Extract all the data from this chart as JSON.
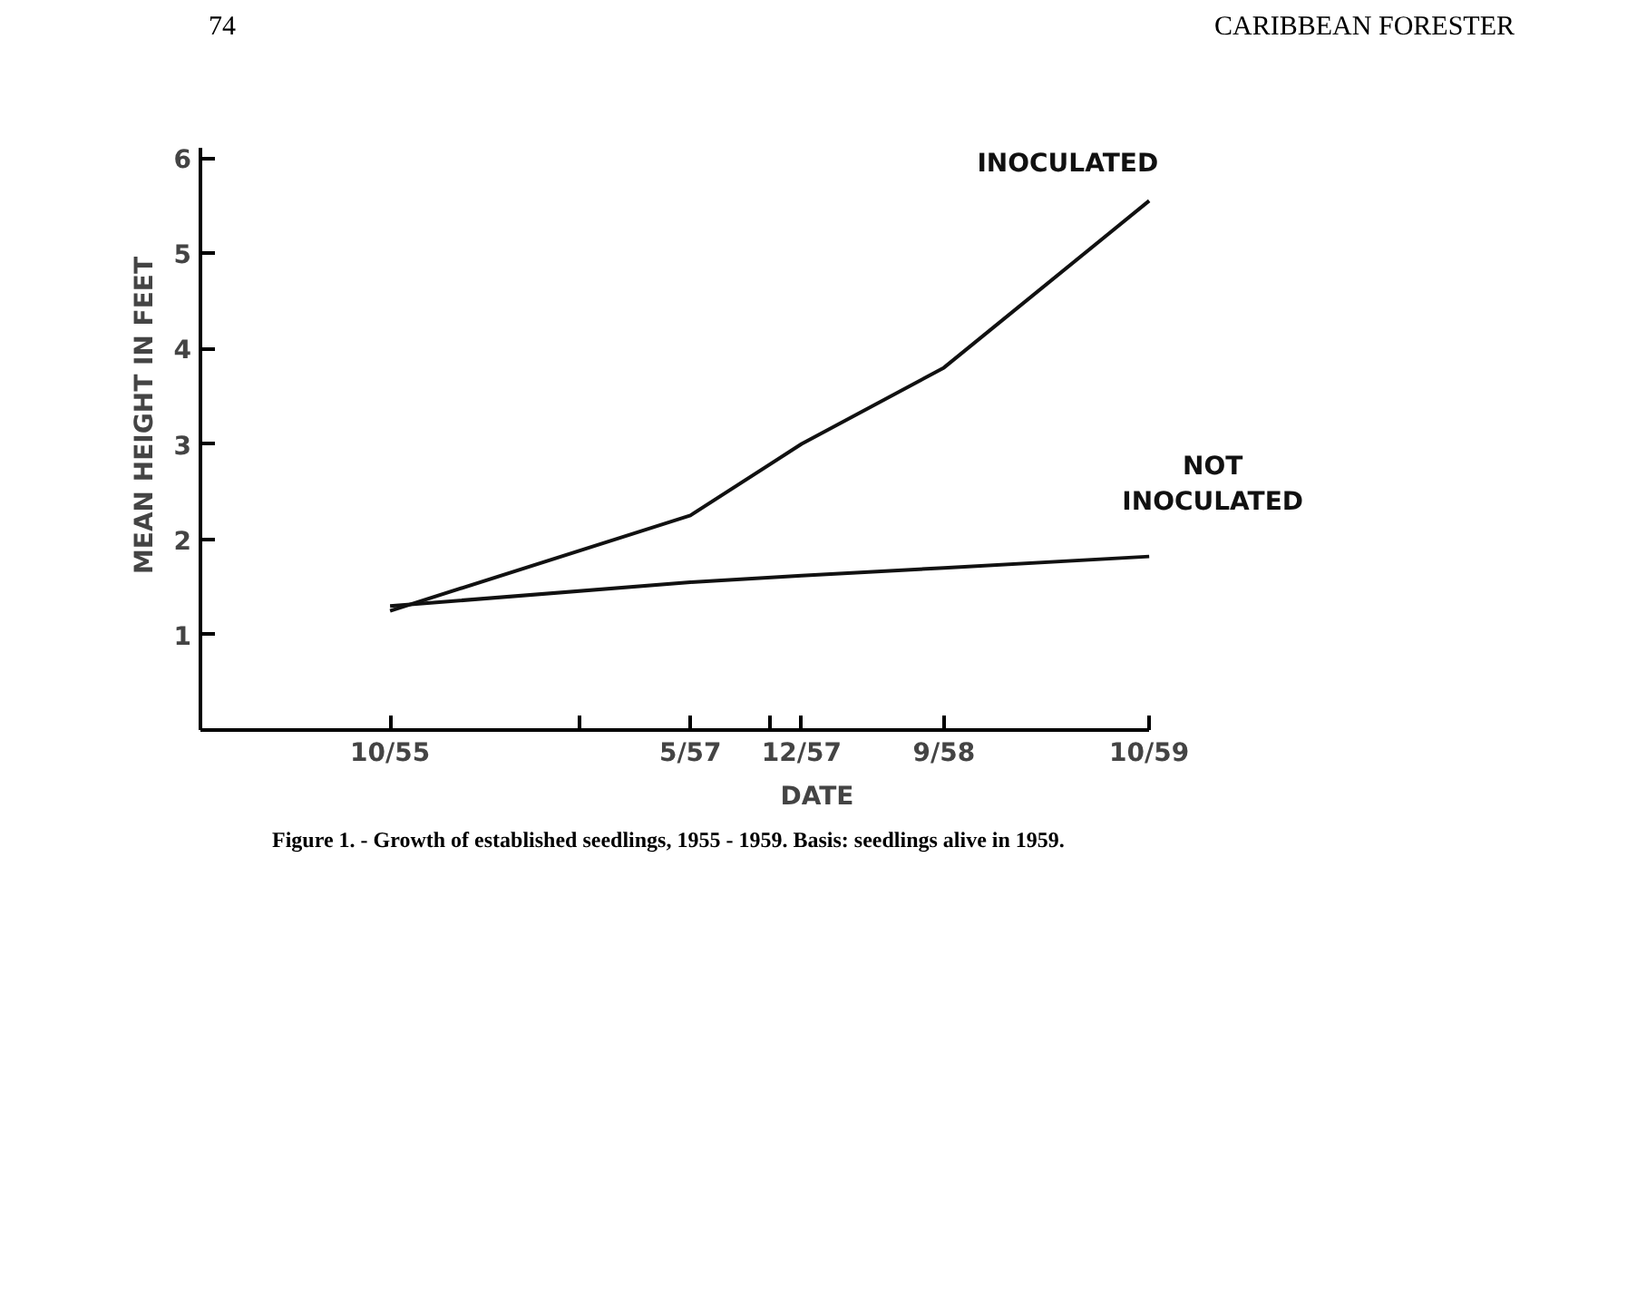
{
  "chart_data": {
    "type": "line",
    "xlabel": "DATE",
    "ylabel": "MEAN HEIGHT IN FEET",
    "x": [
      "1955-10",
      "1957-05",
      "1957-12",
      "1958-09",
      "1959-10"
    ],
    "series": [
      {
        "name": "INOCULATED",
        "color": "#111111",
        "values": [
          1.25,
          2.25,
          3.0,
          3.8,
          5.55
        ]
      },
      {
        "name": "NOT INOCULATED",
        "color": "#111111",
        "values": [
          1.3,
          1.55,
          1.62,
          1.7,
          1.82
        ]
      }
    ],
    "xlim": [
      "1954-10",
      "1959-10"
    ],
    "xticks": [
      {
        "value": "1955-10",
        "label": "10/55"
      },
      {
        "value": "1956-10",
        "label": null
      },
      {
        "value": "1957-05",
        "label": "5/57"
      },
      {
        "value": "1957-10",
        "label": null
      },
      {
        "value": "1957-12",
        "label": "12/57"
      },
      {
        "value": "1958-09",
        "label": "9/58"
      },
      {
        "value": "1959-10",
        "label": "10/59"
      }
    ],
    "ylim": [
      0,
      6.1
    ],
    "yticks": [
      1,
      2,
      3,
      4,
      5,
      6
    ],
    "grid": false,
    "legend": false,
    "marker": "none",
    "line_style": "solid",
    "annotations": [
      "74",
      "CARIBBEAN FORESTER",
      "Figure 1. - Growth of established seedlings, 1955 - 1959.  Basis: seedlings alive in 1959."
    ]
  }
}
